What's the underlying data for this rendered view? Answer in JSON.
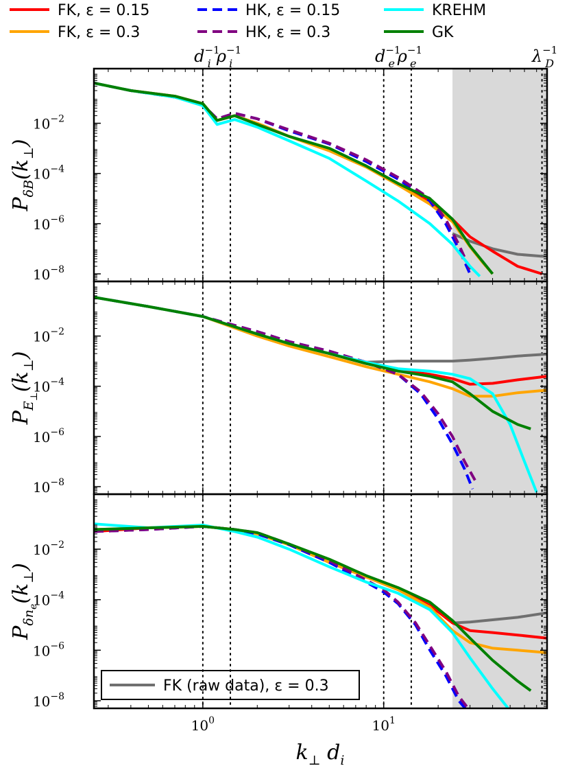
{
  "legend": {
    "entries": [
      {
        "label": "FK, ε = 0.15",
        "color": "#ff0000",
        "dash": false
      },
      {
        "label": "FK, ε = 0.3",
        "color": "#ffa500",
        "dash": false
      },
      {
        "label": "HK, ε = 0.15",
        "color": "#0000ff",
        "dash": true
      },
      {
        "label": "HK, ε = 0.3",
        "color": "#800080",
        "dash": true
      },
      {
        "label": "KREHM",
        "color": "#00ffff",
        "dash": false
      },
      {
        "label": "GK",
        "color": "#008000",
        "dash": false
      }
    ],
    "raw_entry": {
      "label": "FK (raw data), ε = 0.3",
      "color": "#707070"
    }
  },
  "vlines": {
    "x": [
      1.0,
      1.42,
      10.0,
      14.2,
      75.0
    ],
    "labels": [
      {
        "text": "d_i^{-1}",
        "x": 1.0
      },
      {
        "text": "ρ_i^{-1}",
        "x": 1.42
      },
      {
        "text": "d_e^{-1}",
        "x": 10.0
      },
      {
        "text": "ρ_e^{-1}",
        "x": 14.2
      },
      {
        "text": "λ_D^{-1}",
        "x": 75.0
      }
    ]
  },
  "shaded_region": {
    "x": [
      24,
      80
    ],
    "color": "#d9d9d9"
  },
  "xlabel": "k_⊥ d_i",
  "tick_labels": {
    "x": [
      "10^0",
      "10^1"
    ],
    "y": [
      "10^-2",
      "10^-4",
      "10^-6",
      "10^-8"
    ]
  },
  "chart_data": [
    {
      "type": "line",
      "ylabel": "P_δB(k_⊥)",
      "xlim": [
        0.25,
        80
      ],
      "ylim": [
        5e-09,
        1.5
      ],
      "xscale": "log",
      "yscale": "log",
      "series": [
        {
          "name": "FK, ε = 0.15",
          "x": [
            0.25,
            0.4,
            0.7,
            1.0,
            1.2,
            1.5,
            2,
            3,
            5,
            8,
            12,
            18,
            24,
            30,
            40,
            55,
            75
          ],
          "y": [
            0.4,
            0.2,
            0.12,
            0.06,
            0.013,
            0.02,
            0.01,
            0.003,
            0.0009,
            0.0002,
            4e-05,
            8e-06,
            1.5e-06,
            3e-07,
            8e-08,
            2e-08,
            1e-08
          ]
        },
        {
          "name": "FK, ε = 0.3",
          "x": [
            0.25,
            0.4,
            0.7,
            1.0,
            1.2,
            1.5,
            2,
            3,
            5,
            8,
            12,
            18,
            24,
            30,
            35,
            40
          ],
          "y": [
            0.4,
            0.2,
            0.12,
            0.06,
            0.013,
            0.02,
            0.01,
            0.003,
            0.0008,
            0.00018,
            3.5e-05,
            6e-06,
            1.2e-06,
            1.2e-07,
            3e-08,
            1e-08
          ]
        },
        {
          "name": "HK, ε = 0.15",
          "x": [
            0.25,
            0.4,
            0.7,
            1.0,
            1.2,
            1.5,
            2,
            3,
            5,
            8,
            12,
            18,
            22,
            26,
            30
          ],
          "y": [
            0.4,
            0.2,
            0.11,
            0.055,
            0.015,
            0.025,
            0.015,
            0.005,
            0.0015,
            0.0003,
            6e-05,
            8e-06,
            1e-06,
            1e-07,
            1e-08
          ]
        },
        {
          "name": "HK, ε = 0.3",
          "x": [
            0.25,
            0.4,
            0.7,
            1.0,
            1.2,
            1.5,
            2,
            3,
            5,
            8,
            12,
            18,
            22,
            26,
            30
          ],
          "y": [
            0.4,
            0.2,
            0.11,
            0.055,
            0.015,
            0.025,
            0.015,
            0.0055,
            0.0016,
            0.00035,
            7e-05,
            1e-05,
            1.5e-06,
            1.5e-07,
            1.5e-08
          ]
        },
        {
          "name": "KREHM",
          "x": [
            0.25,
            0.4,
            0.7,
            1.0,
            1.2,
            1.5,
            2,
            3,
            5,
            8,
            12,
            18,
            24,
            30,
            34
          ],
          "y": [
            0.4,
            0.2,
            0.11,
            0.05,
            0.009,
            0.014,
            0.007,
            0.002,
            0.0004,
            5e-05,
            8e-06,
            1e-06,
            1.5e-07,
            2e-08,
            8e-09
          ]
        },
        {
          "name": "GK",
          "x": [
            0.25,
            0.4,
            0.7,
            1.0,
            1.2,
            1.5,
            2,
            3,
            5,
            8,
            12,
            18,
            24,
            30,
            40
          ],
          "y": [
            0.4,
            0.2,
            0.12,
            0.06,
            0.013,
            0.02,
            0.009,
            0.003,
            0.001,
            0.0002,
            4e-05,
            1e-05,
            1.5e-06,
            1.3e-07,
            1e-08
          ]
        },
        {
          "name": "FK (raw data), ε = 0.3",
          "x": [
            24,
            30,
            40,
            55,
            75,
            80
          ],
          "y": [
            4e-07,
            2e-07,
            1e-07,
            6e-08,
            5e-08,
            5e-08
          ]
        }
      ]
    },
    {
      "type": "line",
      "ylabel": "P_E⊥(k_⊥)",
      "xlim": [
        0.25,
        80
      ],
      "ylim": [
        5e-09,
        1.5
      ],
      "xscale": "log",
      "yscale": "log",
      "series": [
        {
          "name": "FK, ε = 0.15",
          "x": [
            0.25,
            0.5,
            1,
            2,
            3,
            5,
            8,
            12,
            18,
            24,
            30,
            40,
            55,
            80
          ],
          "y": [
            0.35,
            0.15,
            0.06,
            0.012,
            0.005,
            0.002,
            0.0008,
            0.00045,
            0.0003,
            0.0002,
            0.00012,
            0.00013,
            0.00018,
            0.00025
          ]
        },
        {
          "name": "FK, ε = 0.3",
          "x": [
            0.25,
            0.5,
            1,
            2,
            3,
            5,
            8,
            12,
            18,
            24,
            30,
            40,
            55,
            80
          ],
          "y": [
            0.35,
            0.15,
            0.06,
            0.01,
            0.004,
            0.0015,
            0.0006,
            0.0003,
            0.00015,
            8e-05,
            4e-05,
            4e-05,
            5.5e-05,
            7e-05
          ]
        },
        {
          "name": "HK, ε = 0.15",
          "x": [
            0.25,
            0.5,
            1,
            2,
            3,
            5,
            8,
            12,
            16,
            20,
            24,
            28,
            31
          ],
          "y": [
            0.35,
            0.15,
            0.06,
            0.015,
            0.006,
            0.0025,
            0.0009,
            0.0003,
            5e-05,
            5e-06,
            5e-07,
            5e-08,
            8e-09
          ]
        },
        {
          "name": "HK, ε = 0.3",
          "x": [
            0.25,
            0.5,
            1,
            2,
            3,
            5,
            8,
            12,
            16,
            20,
            24,
            28,
            33
          ],
          "y": [
            0.35,
            0.15,
            0.06,
            0.015,
            0.006,
            0.0025,
            0.0009,
            0.0003,
            6e-05,
            8e-06,
            1e-06,
            1e-07,
            1.2e-08
          ]
        },
        {
          "name": "KREHM",
          "x": [
            0.25,
            0.5,
            1,
            2,
            3,
            5,
            8,
            12,
            18,
            24,
            30,
            40,
            50,
            60,
            70
          ],
          "y": [
            0.35,
            0.15,
            0.06,
            0.012,
            0.005,
            0.002,
            0.0009,
            0.0005,
            0.0004,
            0.0003,
            0.0002,
            5e-05,
            3e-06,
            1e-07,
            6e-09
          ]
        },
        {
          "name": "GK",
          "x": [
            0.25,
            0.5,
            1,
            2,
            3,
            5,
            8,
            12,
            18,
            24,
            30,
            40,
            55,
            65
          ],
          "y": [
            0.35,
            0.15,
            0.06,
            0.012,
            0.005,
            0.002,
            0.0008,
            0.0004,
            0.00025,
            0.00015,
            5e-05,
            1e-05,
            3e-06,
            2e-06
          ]
        },
        {
          "name": "FK (raw data), ε = 0.3",
          "x": [
            8,
            12,
            18,
            24,
            30,
            40,
            55,
            80
          ],
          "y": [
            0.0009,
            0.001,
            0.001,
            0.001,
            0.0011,
            0.0013,
            0.0016,
            0.0019
          ]
        }
      ]
    },
    {
      "type": "line",
      "ylabel": "P_δne(k_⊥)",
      "xlim": [
        0.25,
        80
      ],
      "ylim": [
        5e-09,
        1.5
      ],
      "xscale": "log",
      "yscale": "log",
      "series": [
        {
          "name": "FK, ε = 0.15",
          "x": [
            0.25,
            0.5,
            1,
            1.5,
            2,
            3,
            5,
            8,
            12,
            18,
            24,
            30,
            40,
            55,
            80
          ],
          "y": [
            0.05,
            0.07,
            0.08,
            0.06,
            0.04,
            0.015,
            0.003,
            0.0008,
            0.00025,
            6e-05,
            1.2e-05,
            6e-06,
            5e-06,
            4e-06,
            3e-06
          ]
        },
        {
          "name": "FK, ε = 0.3",
          "x": [
            0.25,
            0.5,
            1,
            1.5,
            2,
            3,
            5,
            8,
            12,
            18,
            24,
            30,
            40,
            55,
            80
          ],
          "y": [
            0.06,
            0.07,
            0.08,
            0.06,
            0.04,
            0.015,
            0.003,
            0.0008,
            0.00025,
            5e-05,
            6e-06,
            2e-06,
            1.2e-06,
            1e-06,
            8e-07
          ]
        },
        {
          "name": "HK, ε = 0.15",
          "x": [
            0.25,
            0.5,
            1,
            1.5,
            2,
            3,
            5,
            8,
            10,
            12,
            15,
            18,
            22,
            26,
            30
          ],
          "y": [
            0.05,
            0.06,
            0.08,
            0.06,
            0.04,
            0.015,
            0.003,
            0.0005,
            0.0002,
            7e-05,
            1e-05,
            1e-06,
            1e-07,
            1e-08,
            3e-09
          ]
        },
        {
          "name": "HK, ε = 0.3",
          "x": [
            0.25,
            0.5,
            1,
            1.5,
            2,
            3,
            5,
            8,
            10,
            12,
            15,
            18,
            22,
            26,
            30
          ],
          "y": [
            0.05,
            0.06,
            0.08,
            0.06,
            0.045,
            0.016,
            0.0035,
            0.0006,
            0.00025,
            8e-05,
            1.2e-05,
            1.5e-06,
            1.5e-07,
            1.5e-08,
            4e-09
          ]
        },
        {
          "name": "KREHM",
          "x": [
            0.25,
            0.5,
            1,
            1.5,
            2,
            3,
            5,
            8,
            12,
            18,
            24,
            30,
            40,
            50,
            55
          ],
          "y": [
            0.1,
            0.07,
            0.09,
            0.05,
            0.03,
            0.01,
            0.002,
            0.0005,
            0.00018,
            4e-05,
            5e-06,
            5e-07,
            3e-08,
            4e-09,
            1e-09
          ]
        },
        {
          "name": "GK",
          "x": [
            0.25,
            0.5,
            1,
            1.5,
            2,
            3,
            5,
            8,
            12,
            18,
            24,
            30,
            40,
            55,
            65
          ],
          "y": [
            0.06,
            0.07,
            0.08,
            0.06,
            0.045,
            0.016,
            0.004,
            0.0009,
            0.0003,
            8e-05,
            1.5e-05,
            3e-06,
            4e-07,
            6e-08,
            2.5e-08
          ]
        },
        {
          "name": "FK (raw data), ε = 0.3",
          "x": [
            24,
            30,
            40,
            55,
            80
          ],
          "y": [
            1.2e-05,
            1.3e-05,
            1.6e-05,
            2e-05,
            3e-05
          ]
        }
      ]
    }
  ]
}
